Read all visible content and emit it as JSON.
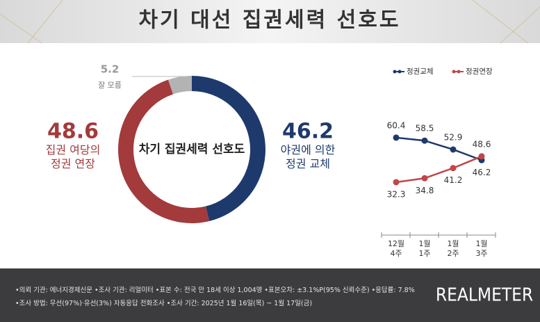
{
  "title": "차기 대선 집권세력 선호도",
  "chart_data": [
    {
      "type": "pie",
      "center_label": "차기 집권세력 선호도",
      "categories": [
        "야권에 의한\n정권 교체",
        "집권 여당의\n정권 연장",
        "잘 모름"
      ],
      "values": [
        46.2,
        48.6,
        5.2
      ],
      "colors": [
        "#1e3a6d",
        "#a33a3b",
        "#b3b3b3"
      ]
    },
    {
      "type": "line",
      "categories": [
        "12월\n4주",
        "1월\n1주",
        "1월\n2주",
        "1월\n3주"
      ],
      "series": [
        {
          "name": "정권교체",
          "color": "#1e3a6d",
          "values": [
            60.4,
            58.5,
            52.9,
            46.2
          ]
        },
        {
          "name": "정권연장",
          "color": "#c0474a",
          "values": [
            32.3,
            34.8,
            41.2,
            48.6
          ]
        }
      ],
      "ylim": [
        20,
        70
      ]
    }
  ],
  "footer": {
    "notes": [
      "•의뢰 기관: 에너지경제신문 •조사 기관: 리얼미터 •표본 수: 전국 만 18세 이상 1,004명 •표본오차: ±3.1%P(95% 신뢰수준) •응답률: 7.8%",
      "•조사 방법: 무선(97%)·유선(3%) 자동응답 전화조사 •조사 기간: 2025년 1월 16일(목) ~ 1월 17일(금)"
    ],
    "logo": "REALMETER"
  }
}
